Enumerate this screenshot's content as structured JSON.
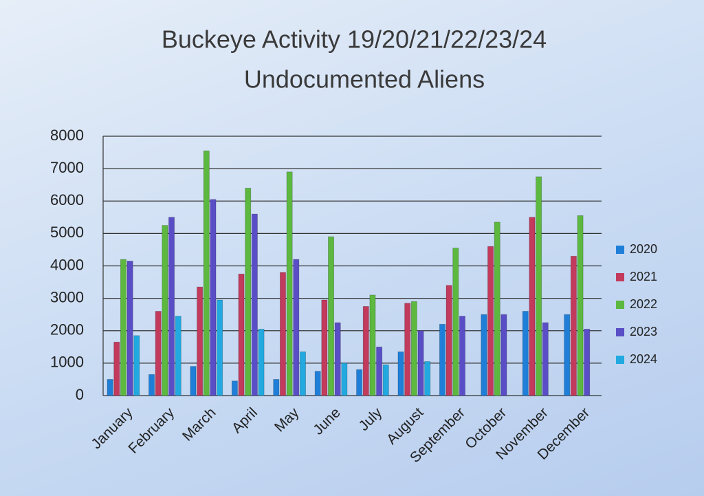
{
  "chart_data": {
    "type": "bar",
    "title": "Buckeye Activity 19/20/21/22/23/24",
    "subtitle": "Undocumented Aliens",
    "categories": [
      "January",
      "February",
      "March",
      "April",
      "May",
      "June",
      "July",
      "August",
      "September",
      "October",
      "November",
      "December"
    ],
    "series": [
      {
        "name": "2020",
        "color": "#1f7fd8",
        "values": [
          500,
          650,
          900,
          450,
          500,
          750,
          800,
          1350,
          2200,
          2500,
          2600,
          2500
        ]
      },
      {
        "name": "2021",
        "color": "#c23a5c",
        "values": [
          1650,
          2600,
          3350,
          3750,
          3800,
          2950,
          2750,
          2850,
          3400,
          4600,
          5500,
          4300
        ]
      },
      {
        "name": "2022",
        "color": "#5db83f",
        "values": [
          4200,
          5250,
          7550,
          6400,
          6900,
          4900,
          3100,
          2900,
          4550,
          5350,
          6750,
          5550
        ]
      },
      {
        "name": "2023",
        "color": "#5a4ec6",
        "values": [
          4150,
          5500,
          6050,
          5600,
          4200,
          2250,
          1500,
          2000,
          2450,
          2500,
          2250,
          2050
        ]
      },
      {
        "name": "2024",
        "color": "#22a9e0",
        "values": [
          1850,
          2450,
          2950,
          2050,
          1350,
          1000,
          950,
          1050,
          null,
          null,
          null,
          null
        ]
      }
    ],
    "ylim": [
      0,
      8000
    ],
    "yticks": [
      0,
      1000,
      2000,
      3000,
      4000,
      5000,
      6000,
      7000,
      8000
    ],
    "grid": true,
    "legend": "right"
  }
}
